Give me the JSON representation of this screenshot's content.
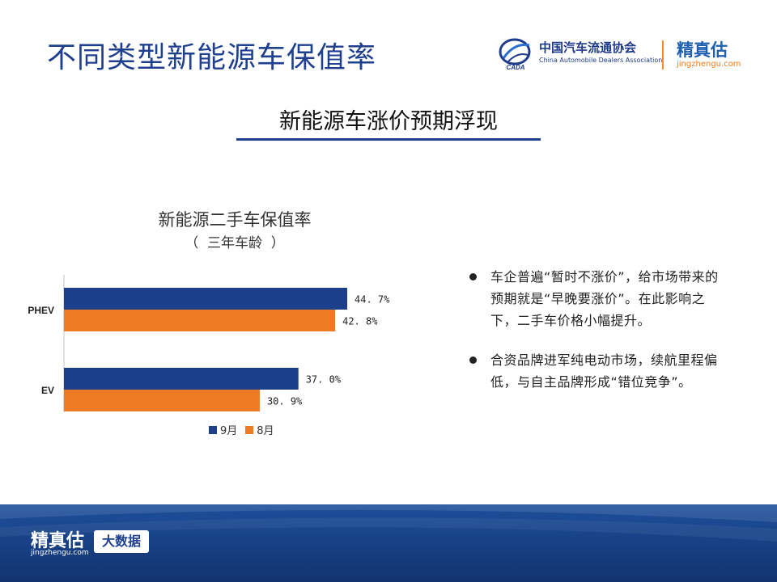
{
  "page": {
    "title": "不同类型新能源车保值率",
    "subtitle": "新能源车涨价预期浮现"
  },
  "header_logos": {
    "cada": {
      "name_cn": "中国汽车流通协会",
      "name_en": "China Automobile Dealers Association",
      "emblem_text": "CADA"
    },
    "jingzhengu": {
      "name_cn": "精真估",
      "url": "jingzhengu.com"
    }
  },
  "chart_data": {
    "type": "bar",
    "orientation": "horizontal",
    "title": "新能源二手车保值率",
    "subtitle": "（  三年车龄  ）",
    "categories": [
      "PHEV",
      "EV"
    ],
    "series": [
      {
        "name": "9月",
        "values": [
          44.7,
          37.0
        ],
        "labels": [
          "44. 7%",
          "37. 0%"
        ],
        "color": "#1b3f8b"
      },
      {
        "name": "8月",
        "values": [
          42.8,
          30.9
        ],
        "labels": [
          "42. 8%",
          "30. 9%"
        ],
        "color": "#ee7a24"
      }
    ],
    "xlim": [
      0,
      60
    ],
    "unit": "%",
    "grid": false,
    "legend": "bottom-center"
  },
  "bullets": [
    {
      "text": "车企普遍“暂时不涨价”，给市场带来的预期就是“早晚要涨价”。在此影响之下，二手车价格小幅提升。"
    },
    {
      "text": "合资品牌进军纯电动市场，续航里程偏低，与自主品牌形成“错位竞争”。"
    }
  ],
  "footer": {
    "logo_cn": "精真估",
    "logo_url": "jingzhengu.com",
    "badge": "大数据"
  },
  "colors": {
    "title_blue": "#1f3f8f",
    "bar_sept": "#1b3f8b",
    "bar_aug": "#ee7a24",
    "footer_blue": "#173f82",
    "divider_orange": "#f28c28"
  }
}
